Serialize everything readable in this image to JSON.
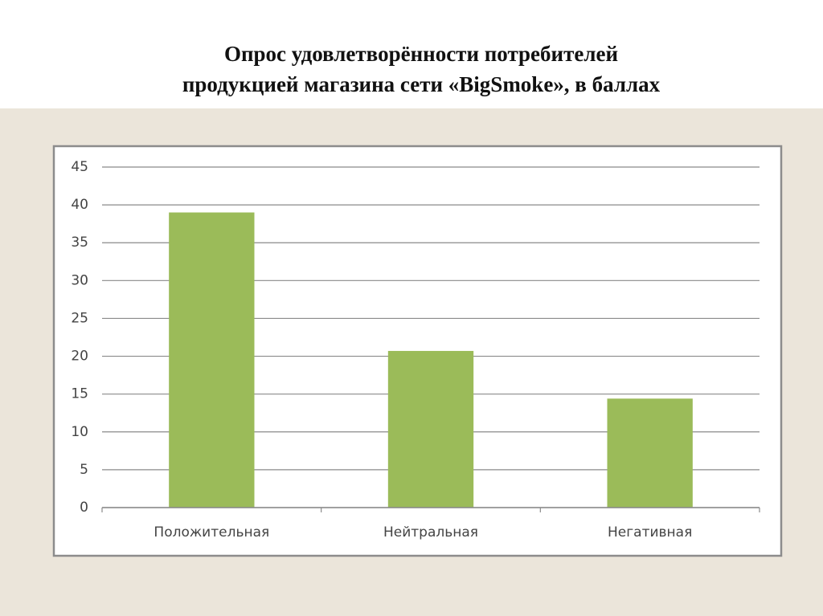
{
  "chart_data": {
    "type": "bar",
    "title": [
      "Опрос удовлетворённости потребителей",
      "продукцией магазина сети «BigSmoke», в баллах"
    ],
    "categories": [
      "Положительная",
      "Нейтральная",
      "Негативная"
    ],
    "values": [
      39,
      20.7,
      14.4
    ],
    "color": "#9bbb59",
    "ylim": [
      0,
      45
    ],
    "yticks": [
      0,
      5,
      10,
      15,
      20,
      25,
      30,
      35,
      40,
      45
    ],
    "grid": true
  }
}
